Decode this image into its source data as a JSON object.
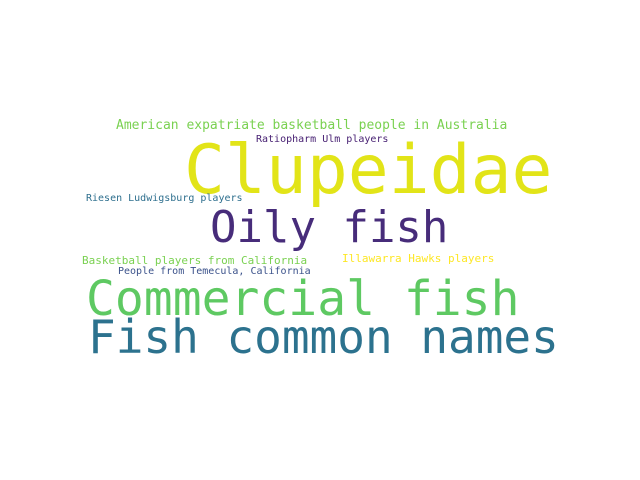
{
  "words": [
    {
      "text": "American expatriate basketball people in Australia",
      "color": "#7ad151"
    },
    {
      "text": "Clupeidae",
      "color": "#e2e418"
    },
    {
      "text": "Ratiopharm Ulm players",
      "color": "#482173"
    },
    {
      "text": "Riesen Ludwigsburg players",
      "color": "#2e6f8e"
    },
    {
      "text": "Oily fish",
      "color": "#472c7a"
    },
    {
      "text": "Basketball players from California",
      "color": "#7ad151"
    },
    {
      "text": "Illawarra Hawks players",
      "color": "#fde725"
    },
    {
      "text": "People from Temecula, California",
      "color": "#3b528b"
    },
    {
      "text": "Commercial fish",
      "color": "#5ec962"
    },
    {
      "text": "Fish common names",
      "color": "#2c728e"
    }
  ]
}
